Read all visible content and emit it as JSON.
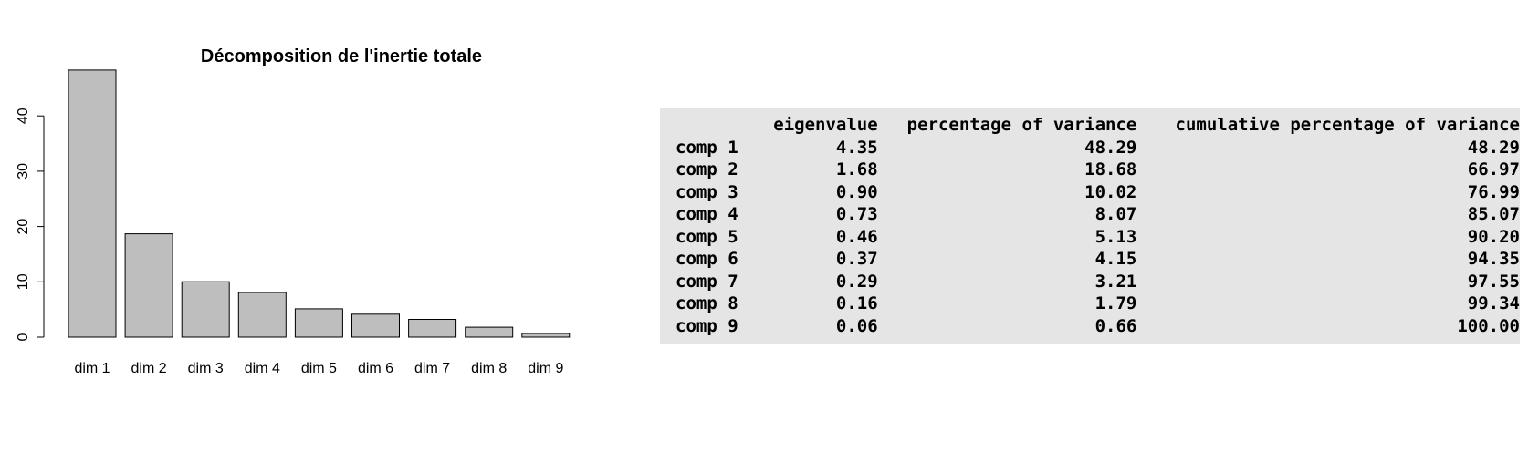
{
  "chart_data": {
    "type": "bar",
    "title": "Décomposition de l'inertie totale",
    "categories": [
      "dim 1",
      "dim 2",
      "dim 3",
      "dim 4",
      "dim 5",
      "dim 6",
      "dim 7",
      "dim 8",
      "dim 9"
    ],
    "values": [
      48.29,
      18.68,
      10.02,
      8.07,
      5.13,
      4.15,
      3.21,
      1.79,
      0.66
    ],
    "yticks": [
      "0",
      "10",
      "20",
      "30",
      "40"
    ],
    "ylim": [
      0,
      50
    ],
    "grid": false,
    "bar_color": "#bebebe"
  },
  "table": {
    "columns": [
      "",
      "eigenvalue",
      "percentage of variance",
      "cumulative percentage of variance"
    ],
    "rows": [
      [
        "comp 1",
        "4.35",
        "48.29",
        "48.29"
      ],
      [
        "comp 2",
        "1.68",
        "18.68",
        "66.97"
      ],
      [
        "comp 3",
        "0.90",
        "10.02",
        "76.99"
      ],
      [
        "comp 4",
        "0.73",
        "8.07",
        "85.07"
      ],
      [
        "comp 5",
        "0.46",
        "5.13",
        "90.20"
      ],
      [
        "comp 6",
        "0.37",
        "4.15",
        "94.35"
      ],
      [
        "comp 7",
        "0.29",
        "3.21",
        "97.55"
      ],
      [
        "comp 8",
        "0.16",
        "1.79",
        "99.34"
      ],
      [
        "comp 9",
        "0.06",
        "0.66",
        "100.00"
      ]
    ],
    "background": "#e5e5e5"
  }
}
